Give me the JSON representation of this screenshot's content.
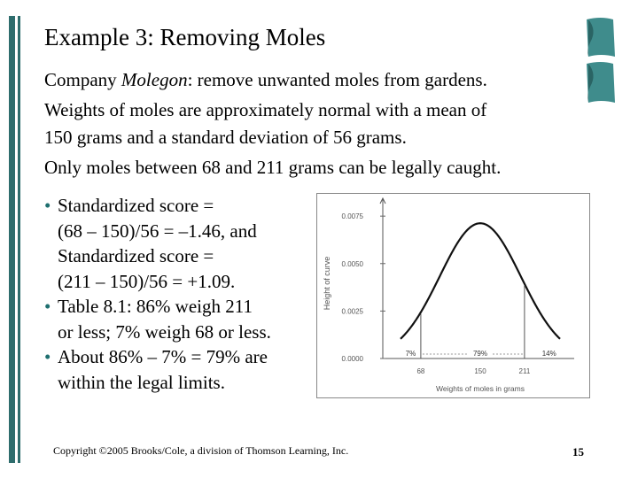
{
  "slide": {
    "title": "Example 3:  Removing Moles",
    "intro_pre": "Company ",
    "intro_company": "Molegon",
    "intro_post": ": remove unwanted moles from gardens.",
    "weights_line1": "Weights of moles are approximately normal with a mean of",
    "weights_line2": "150 grams and a standard deviation of 56 grams.",
    "legal_line": "Only moles between 68 and 211 grams can be legally caught.",
    "bullets": [
      {
        "lines": [
          "Standardized score =",
          "(68 – 150)/56 = –1.46, and",
          "Standardized score =",
          "(211 – 150)/56 = +1.09."
        ]
      },
      {
        "lines": [
          "Table 8.1: 86% weigh 211",
          "or less; 7% weigh 68 or less."
        ]
      },
      {
        "lines": [
          "About 86% – 7% = 79% are",
          "within the legal limits."
        ]
      }
    ],
    "bullet_symbol": "•",
    "copyright": "Copyright ©2005 Brooks/Cole, a division of Thomson Learning, Inc.",
    "page_number": "15"
  },
  "colors": {
    "accent": "#2e6d6d",
    "bullet": "#1e6f6f"
  },
  "chart_data": {
    "type": "area",
    "xlabel": "Weights of moles in grams",
    "ylabel": "Height of curve",
    "mean": 150,
    "sd": 56,
    "x_ticks": [
      "68",
      "150",
      "211"
    ],
    "y_ticks": [
      "0.0000",
      "0.0025",
      "0.0050",
      "0.0075"
    ],
    "ylim": [
      0,
      0.0083
    ],
    "region_labels": [
      {
        "label": "7%",
        "x": 54
      },
      {
        "label": "79%",
        "x": 150
      },
      {
        "label": "14%",
        "x": 245
      }
    ],
    "cutoffs": [
      68,
      211
    ]
  }
}
